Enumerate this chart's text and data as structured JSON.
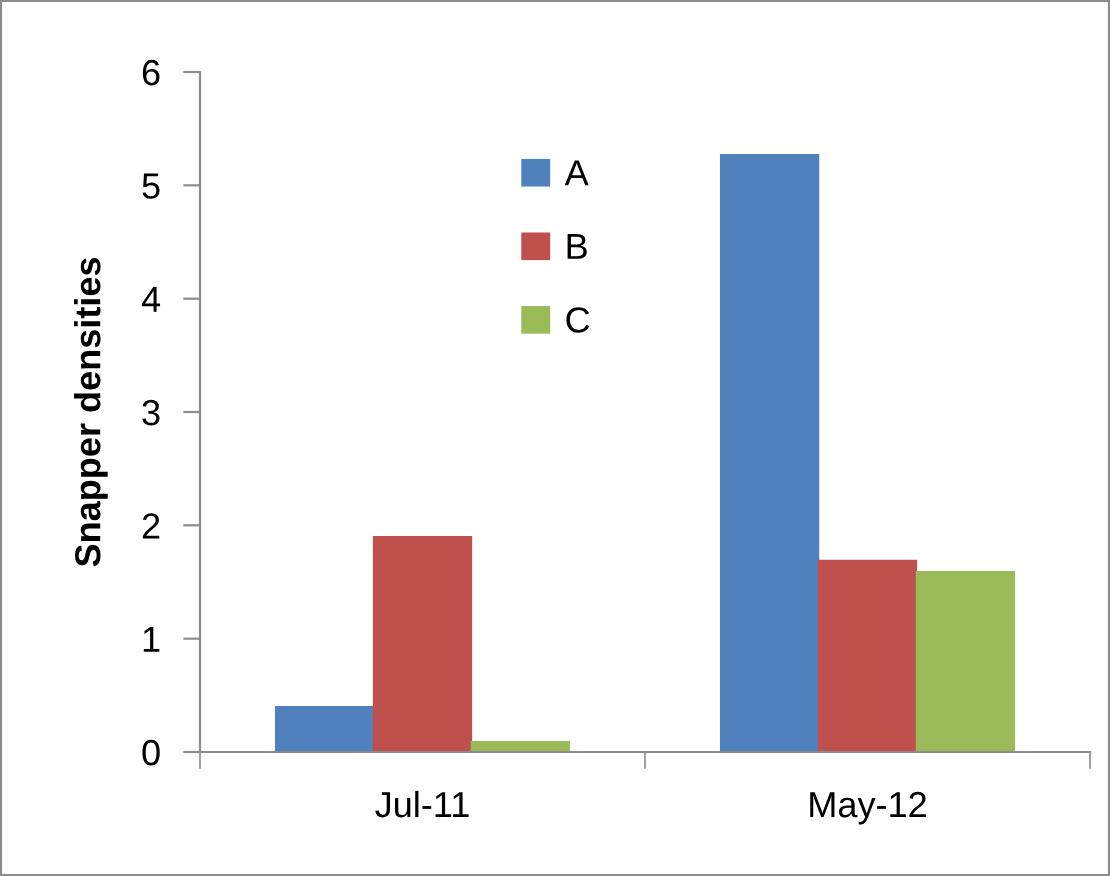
{
  "chart_data": {
    "type": "bar",
    "ylabel": "Snapper densities",
    "categories": [
      "Jul-11",
      "May-12"
    ],
    "series": [
      {
        "name": "A",
        "color": "#4f81bd",
        "values": [
          0.4,
          5.27
        ]
      },
      {
        "name": "B",
        "color": "#c0504d",
        "values": [
          1.9,
          1.69
        ]
      },
      {
        "name": "C",
        "color": "#9bbb59",
        "values": [
          0.09,
          1.59
        ]
      }
    ],
    "ylim": [
      0,
      6
    ],
    "yticks": [
      0,
      1,
      2,
      3,
      4,
      5,
      6
    ],
    "grid": false,
    "legend": "top center"
  }
}
